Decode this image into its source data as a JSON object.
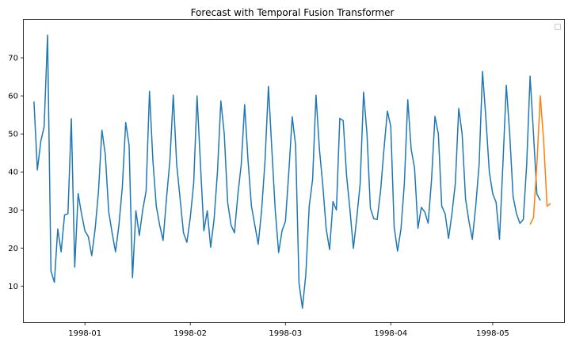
{
  "chart_data": {
    "type": "line",
    "title": "Forecast with Temporal Fusion Transformer",
    "xlabel": "",
    "ylabel": "",
    "x_range": [
      "1997-12-14",
      "1998-05-22"
    ],
    "ylim": [
      0.5,
      80
    ],
    "grid": false,
    "legend": "top-right (empty)",
    "x_ticks": [
      {
        "date": "1998-01-01",
        "label": "1998-01"
      },
      {
        "date": "1998-02-01",
        "label": "1998-02"
      },
      {
        "date": "1998-03-01",
        "label": "1998-03"
      },
      {
        "date": "1998-04-01",
        "label": "1998-04"
      },
      {
        "date": "1998-05-01",
        "label": "1998-05"
      }
    ],
    "y_ticks": [
      10,
      20,
      30,
      40,
      50,
      60,
      70
    ],
    "series": [
      {
        "color": "#1f77b4",
        "start_date": "1997-12-17",
        "values": [
          58.5,
          40.5,
          48,
          52,
          76,
          14,
          11,
          25,
          19,
          28.7,
          29,
          54,
          15,
          34.3,
          29,
          24.5,
          23,
          18,
          25,
          35,
          51,
          44.5,
          29.5,
          24,
          19,
          26,
          36,
          53,
          47,
          12.2,
          29.8,
          23.3,
          30,
          35,
          61.2,
          43,
          31,
          26,
          22,
          33,
          43,
          60.2,
          42,
          33,
          24,
          21.5,
          28,
          37,
          60,
          42,
          24.5,
          29.8,
          20.2,
          27.5,
          40,
          58.7,
          50,
          32,
          26,
          24,
          34,
          42,
          57.7,
          43,
          31,
          26,
          21,
          30,
          43,
          62.5,
          46,
          30,
          18.8,
          24.5,
          27,
          40,
          54.5,
          47,
          10.8,
          4.2,
          13,
          31,
          38,
          60.2,
          46,
          36.5,
          25,
          19.6,
          32.2,
          30,
          54.1,
          53.5,
          39,
          30,
          19.9,
          28,
          37,
          61,
          50,
          30.5,
          27.7,
          27.5,
          35,
          46,
          56,
          52,
          25.5,
          19.2,
          25,
          37,
          59,
          46,
          41,
          25.2,
          30.7,
          29.5,
          26.5,
          38,
          54.6,
          50,
          31,
          29,
          22.5,
          29,
          37,
          56.7,
          50,
          33,
          27,
          22.3,
          31,
          42,
          66.4,
          54,
          40,
          34.3,
          32,
          22.3,
          42,
          62.8,
          50,
          33.5,
          29,
          26.5,
          27.5,
          42,
          65.2,
          50,
          34.2,
          32.5
        ]
      },
      {
        "color": "#ff7f0e",
        "start_date": "1998-05-12",
        "values": [
          26.2,
          28,
          42,
          60,
          48,
          31,
          31.7
        ]
      }
    ]
  }
}
